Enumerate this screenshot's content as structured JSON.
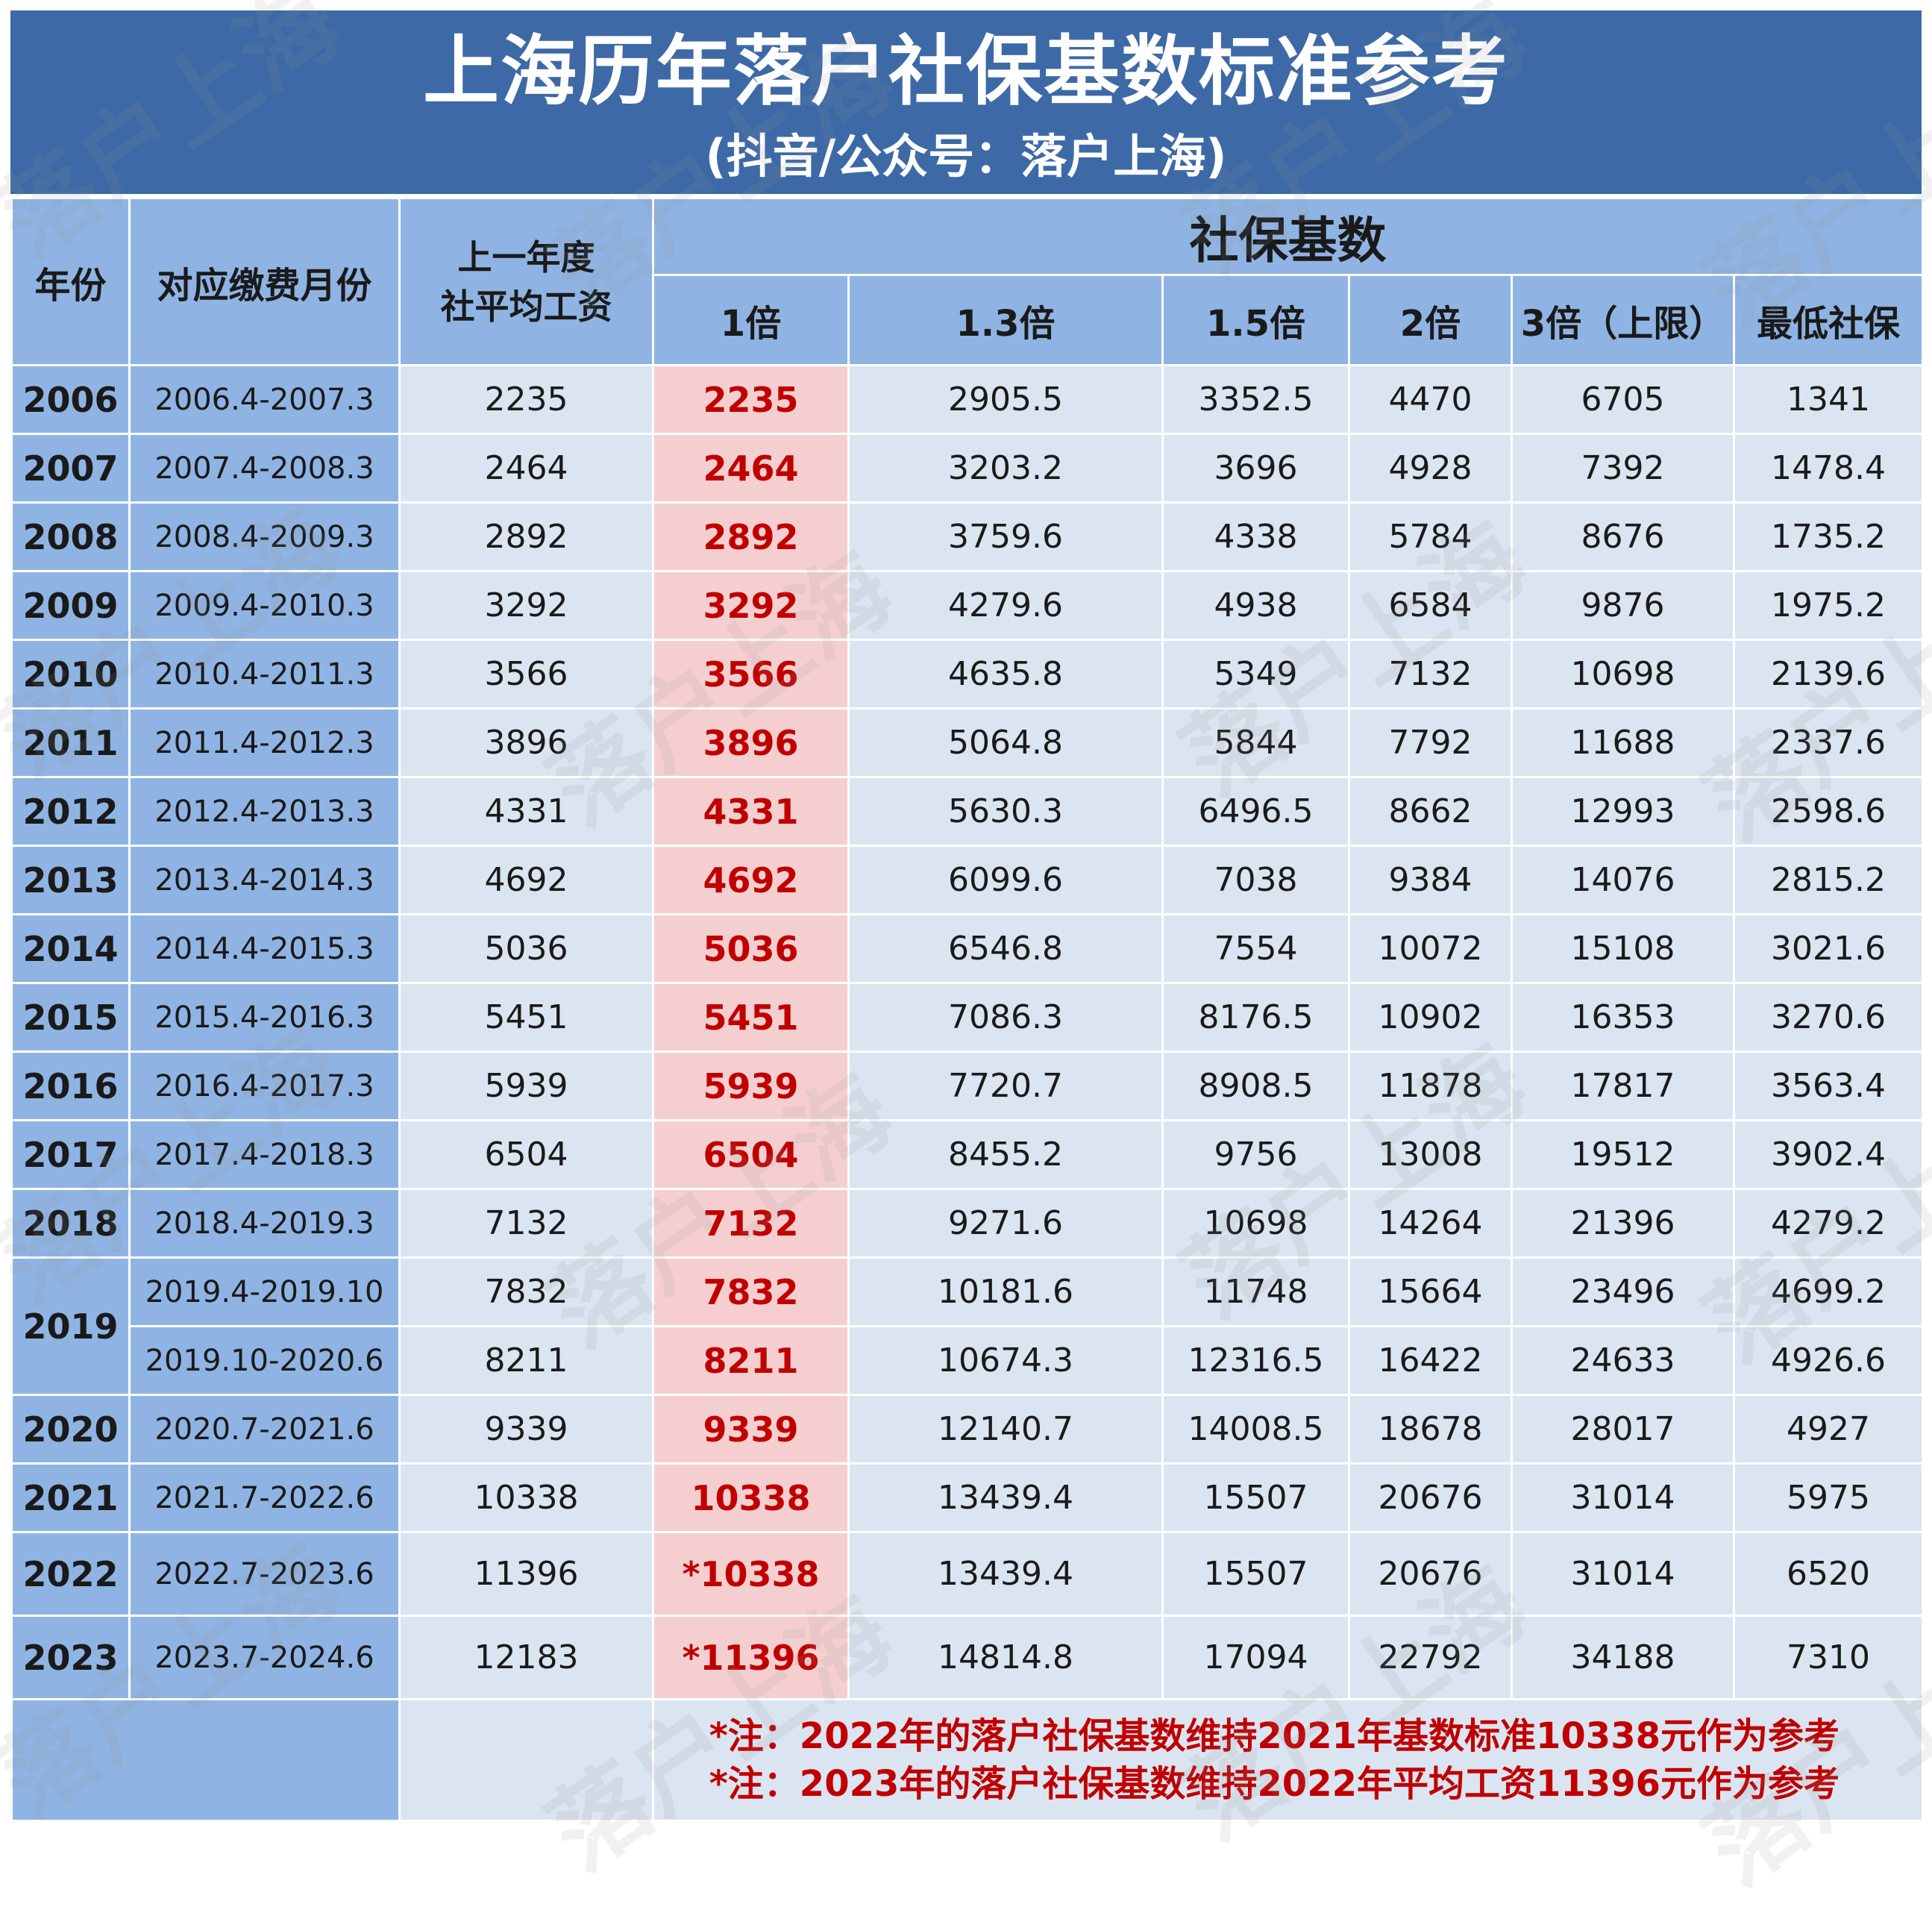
{
  "title": "上海历年落户社保基数标准参考",
  "subtitle": "(抖音/公众号：落户上海)",
  "watermark_text": "落户上海",
  "headers": {
    "year": "年份",
    "month": "对应缴费月份",
    "avg_wage": "上一年度\n社平均工资",
    "group": "社保基数",
    "x1": "1倍",
    "x13": "1.3倍",
    "x15": "1.5倍",
    "x2": "2倍",
    "x3": "3倍（上限）",
    "min": "最低社保"
  },
  "rows": [
    {
      "year": "2006",
      "period": "2006.4-2007.3",
      "avg": "2235",
      "x1": "2235",
      "x13": "2905.5",
      "x15": "3352.5",
      "x2": "4470",
      "x3": "6705",
      "min": "1341"
    },
    {
      "year": "2007",
      "period": "2007.4-2008.3",
      "avg": "2464",
      "x1": "2464",
      "x13": "3203.2",
      "x15": "3696",
      "x2": "4928",
      "x3": "7392",
      "min": "1478.4"
    },
    {
      "year": "2008",
      "period": "2008.4-2009.3",
      "avg": "2892",
      "x1": "2892",
      "x13": "3759.6",
      "x15": "4338",
      "x2": "5784",
      "x3": "8676",
      "min": "1735.2"
    },
    {
      "year": "2009",
      "period": "2009.4-2010.3",
      "avg": "3292",
      "x1": "3292",
      "x13": "4279.6",
      "x15": "4938",
      "x2": "6584",
      "x3": "9876",
      "min": "1975.2"
    },
    {
      "year": "2010",
      "period": "2010.4-2011.3",
      "avg": "3566",
      "x1": "3566",
      "x13": "4635.8",
      "x15": "5349",
      "x2": "7132",
      "x3": "10698",
      "min": "2139.6"
    },
    {
      "year": "2011",
      "period": "2011.4-2012.3",
      "avg": "3896",
      "x1": "3896",
      "x13": "5064.8",
      "x15": "5844",
      "x2": "7792",
      "x3": "11688",
      "min": "2337.6"
    },
    {
      "year": "2012",
      "period": "2012.4-2013.3",
      "avg": "4331",
      "x1": "4331",
      "x13": "5630.3",
      "x15": "6496.5",
      "x2": "8662",
      "x3": "12993",
      "min": "2598.6"
    },
    {
      "year": "2013",
      "period": "2013.4-2014.3",
      "avg": "4692",
      "x1": "4692",
      "x13": "6099.6",
      "x15": "7038",
      "x2": "9384",
      "x3": "14076",
      "min": "2815.2"
    },
    {
      "year": "2014",
      "period": "2014.4-2015.3",
      "avg": "5036",
      "x1": "5036",
      "x13": "6546.8",
      "x15": "7554",
      "x2": "10072",
      "x3": "15108",
      "min": "3021.6"
    },
    {
      "year": "2015",
      "period": "2015.4-2016.3",
      "avg": "5451",
      "x1": "5451",
      "x13": "7086.3",
      "x15": "8176.5",
      "x2": "10902",
      "x3": "16353",
      "min": "3270.6"
    },
    {
      "year": "2016",
      "period": "2016.4-2017.3",
      "avg": "5939",
      "x1": "5939",
      "x13": "7720.7",
      "x15": "8908.5",
      "x2": "11878",
      "x3": "17817",
      "min": "3563.4"
    },
    {
      "year": "2017",
      "period": "2017.4-2018.3",
      "avg": "6504",
      "x1": "6504",
      "x13": "8455.2",
      "x15": "9756",
      "x2": "13008",
      "x3": "19512",
      "min": "3902.4"
    },
    {
      "year": "2018",
      "period": "2018.4-2019.3",
      "avg": "7132",
      "x1": "7132",
      "x13": "9271.6",
      "x15": "10698",
      "x2": "14264",
      "x3": "21396",
      "min": "4279.2"
    },
    {
      "year": "2019",
      "period": "2019.4-2019.10",
      "avg": "7832",
      "x1": "7832",
      "x13": "10181.6",
      "x15": "11748",
      "x2": "15664",
      "x3": "23496",
      "min": "4699.2"
    },
    {
      "year": "",
      "period": "2019.10-2020.6",
      "avg": "8211",
      "x1": "8211",
      "x13": "10674.3",
      "x15": "12316.5",
      "x2": "16422",
      "x3": "24633",
      "min": "4926.6"
    },
    {
      "year": "2020",
      "period": "2020.7-2021.6",
      "avg": "9339",
      "x1": "9339",
      "x13": "12140.7",
      "x15": "14008.5",
      "x2": "18678",
      "x3": "28017",
      "min": "4927"
    },
    {
      "year": "2021",
      "period": "2021.7-2022.6",
      "avg": "10338",
      "x1": "10338",
      "x13": "13439.4",
      "x15": "15507",
      "x2": "20676",
      "x3": "31014",
      "min": "5975"
    },
    {
      "year": "2022",
      "period": "2022.7-2023.6",
      "avg": "11396",
      "x1": "*10338",
      "x13": "13439.4",
      "x15": "15507",
      "x2": "20676",
      "x3": "31014",
      "min": "6520"
    },
    {
      "year": "2023",
      "period": "2023.7-2024.6",
      "avg": "12183",
      "x1": "*11396",
      "x13": "14814.8",
      "x15": "17094",
      "x2": "22792",
      "x3": "34188",
      "min": "7310"
    }
  ],
  "notes": [
    "*注：2022年的落户社保基数维持2021年基数标准10338元作为参考",
    "*注：2023年的落户社保基数维持2022年平均工资11396元作为参考"
  ],
  "colors": {
    "banner": "#3d6aa6",
    "header_cell": "#8fb4e3",
    "body_cell": "#dbe5f1",
    "highlight_cell": "#f5cfd0",
    "highlight_text": "#c00000"
  }
}
